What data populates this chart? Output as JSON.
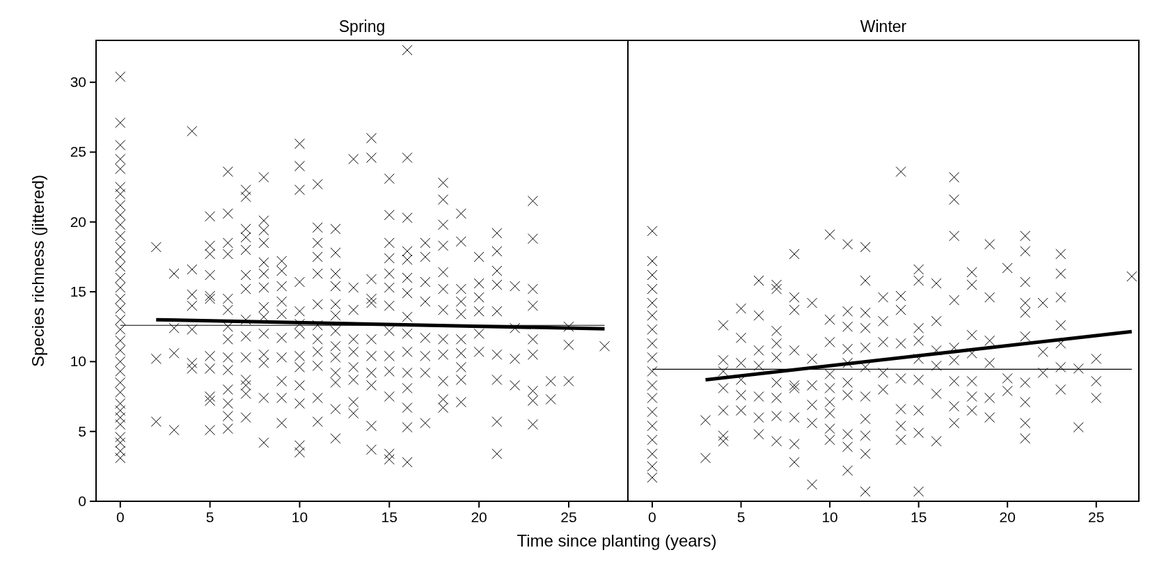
{
  "chart_data": [
    {
      "type": "scatter",
      "title": "Spring",
      "xlabel": "Time since planting (years)",
      "ylabel": "Species richness (jittered)",
      "xlim": [
        -1.35,
        28.3
      ],
      "ylim": [
        0,
        33
      ],
      "xticks": [
        0,
        5,
        10,
        15,
        20,
        25
      ],
      "yticks": [
        0,
        5,
        10,
        15,
        20,
        25,
        30
      ],
      "series": [
        {
          "type": "scatter",
          "marker": "cross",
          "color": "#000000",
          "x": [
            0,
            0,
            0,
            0,
            0,
            0,
            0,
            0,
            0,
            0,
            0,
            0,
            0,
            0,
            0,
            0,
            0,
            0,
            0,
            0,
            0,
            0,
            0,
            0,
            0,
            0,
            0,
            0,
            0,
            0,
            0,
            0,
            0,
            0,
            2,
            2,
            2,
            3,
            3,
            3,
            3,
            4,
            4,
            4,
            4,
            4,
            4,
            4,
            5,
            5,
            5,
            5,
            5,
            5,
            5,
            5,
            5,
            5,
            5,
            6,
            6,
            6,
            6,
            6,
            6,
            6,
            6,
            6,
            6,
            6,
            6,
            6,
            6,
            7,
            7,
            7,
            7,
            7,
            7,
            7,
            7,
            7,
            7,
            7,
            7,
            7,
            7,
            8,
            8,
            8,
            8,
            8,
            8,
            8,
            8,
            8,
            8,
            8,
            8,
            8,
            8,
            9,
            9,
            9,
            9,
            9,
            9,
            9,
            9,
            9,
            9,
            10,
            10,
            10,
            10,
            10,
            10,
            10,
            10,
            10,
            10,
            10,
            10,
            10,
            11,
            11,
            11,
            11,
            11,
            11,
            11,
            11,
            11,
            11,
            11,
            11,
            12,
            12,
            12,
            12,
            12,
            12,
            12,
            12,
            12,
            12,
            12,
            12,
            12,
            13,
            13,
            13,
            13,
            13,
            13,
            13,
            13,
            13,
            14,
            14,
            14,
            14,
            14,
            14,
            14,
            14,
            14,
            14,
            14,
            15,
            15,
            15,
            15,
            15,
            15,
            15,
            15,
            15,
            15,
            15,
            15,
            15,
            16,
            16,
            16,
            16,
            16,
            16,
            16,
            16,
            16,
            16,
            16,
            16,
            16,
            16,
            16,
            17,
            17,
            17,
            17,
            17,
            17,
            17,
            17,
            18,
            18,
            18,
            18,
            18,
            18,
            18,
            18,
            18,
            18,
            18,
            18,
            19,
            19,
            19,
            19,
            19,
            19,
            19,
            19,
            19,
            19,
            20,
            20,
            20,
            20,
            20,
            20,
            21,
            21,
            21,
            21,
            21,
            21,
            21,
            21,
            21,
            22,
            22,
            22,
            22,
            23,
            23,
            23,
            23,
            23,
            23,
            23,
            23,
            23,
            24,
            24,
            25,
            25,
            25,
            27
          ],
          "values": [
            30.4,
            27.1,
            25.5,
            24.5,
            23.8,
            22.5,
            22.0,
            21.2,
            20.5,
            19.8,
            19.0,
            18.2,
            17.5,
            16.8,
            16.0,
            15.3,
            14.5,
            13.8,
            13.0,
            12.3,
            11.5,
            10.8,
            10.0,
            9.3,
            8.5,
            7.8,
            7.0,
            6.5,
            6.0,
            5.5,
            4.6,
            4.2,
            3.6,
            3.1,
            18.2,
            10.2,
            5.7,
            16.3,
            12.4,
            10.6,
            5.1,
            26.5,
            16.6,
            14.8,
            14.0,
            12.3,
            9.9,
            9.5,
            20.4,
            18.3,
            17.7,
            16.2,
            14.7,
            14.5,
            10.4,
            9.5,
            7.5,
            7.2,
            5.1,
            23.6,
            20.6,
            18.5,
            17.7,
            14.5,
            13.7,
            12.5,
            11.6,
            10.3,
            9.4,
            8.0,
            7.0,
            6.1,
            5.2,
            22.3,
            21.8,
            19.5,
            18.9,
            18.0,
            16.2,
            15.2,
            13.0,
            11.8,
            10.3,
            8.7,
            8.3,
            7.7,
            6.0,
            23.2,
            20.1,
            19.4,
            18.5,
            17.1,
            16.3,
            15.3,
            13.9,
            13.2,
            12.0,
            10.5,
            9.9,
            7.4,
            4.2,
            17.2,
            16.5,
            15.4,
            14.3,
            13.4,
            11.7,
            10.3,
            8.6,
            7.4,
            5.6,
            25.6,
            24.0,
            22.3,
            15.7,
            13.6,
            12.7,
            12.0,
            10.4,
            9.6,
            8.3,
            7.0,
            4.0,
            3.5,
            22.7,
            19.6,
            18.5,
            17.5,
            16.3,
            14.1,
            12.6,
            11.6,
            10.7,
            9.7,
            7.4,
            5.7,
            19.5,
            17.8,
            16.3,
            15.4,
            14.1,
            13.3,
            12.2,
            11.1,
            10.3,
            9.2,
            8.5,
            6.6,
            4.5,
            24.5,
            15.3,
            13.7,
            11.6,
            10.7,
            9.6,
            8.7,
            7.1,
            6.3,
            26.0,
            24.6,
            15.9,
            14.5,
            14.2,
            11.6,
            10.4,
            9.2,
            8.3,
            5.4,
            3.7,
            23.1,
            20.5,
            18.5,
            17.4,
            16.3,
            15.3,
            14.0,
            12.2,
            10.4,
            9.3,
            7.5,
            3.4,
            3.0,
            32.3,
            24.6,
            20.3,
            17.9,
            17.3,
            16.0,
            14.9,
            13.2,
            12.0,
            10.7,
            9.2,
            8.1,
            6.7,
            5.3,
            2.8,
            18.5,
            17.5,
            15.7,
            14.3,
            11.7,
            10.4,
            9.2,
            5.6,
            22.8,
            21.6,
            19.8,
            18.3,
            16.4,
            15.2,
            13.7,
            11.6,
            10.5,
            8.6,
            7.3,
            6.7,
            20.6,
            18.6,
            15.2,
            14.3,
            13.4,
            11.6,
            10.6,
            9.6,
            8.7,
            7.1,
            17.5,
            15.6,
            14.6,
            13.6,
            12.0,
            10.7,
            19.2,
            17.9,
            16.5,
            15.5,
            13.6,
            10.5,
            8.7,
            5.7,
            3.4,
            15.4,
            12.4,
            10.2,
            8.3,
            21.5,
            18.8,
            15.2,
            14.0,
            11.6,
            10.5,
            7.9,
            7.2,
            5.5,
            8.6,
            7.3,
            12.5,
            11.2,
            8.6,
            11.1
          ]
        },
        {
          "type": "line",
          "color": "#000000",
          "x": [
            0,
            27
          ],
          "values": [
            12.6,
            12.6
          ]
        },
        {
          "type": "line",
          "color": "#000000",
          "x": [
            2,
            27
          ],
          "values": [
            13.0,
            12.35
          ]
        }
      ]
    },
    {
      "type": "scatter",
      "title": "Winter",
      "xlim": [
        -1.37,
        27.4
      ],
      "ylim": [
        0,
        33
      ],
      "xticks": [
        0,
        5,
        10,
        15,
        20,
        25
      ],
      "tick_labels": "x",
      "series": [
        {
          "type": "scatter",
          "marker": "cross",
          "color": "#000000",
          "x": [
            0,
            0,
            0,
            0,
            0,
            0,
            0,
            0,
            0,
            0,
            0,
            0,
            0,
            0,
            0,
            0,
            0,
            0,
            3,
            3,
            4,
            4,
            4,
            4,
            4,
            4,
            4,
            5,
            5,
            5,
            5,
            5,
            5,
            6,
            6,
            6,
            6,
            6,
            6,
            6,
            7,
            7,
            7,
            7,
            7,
            7,
            7,
            7,
            7,
            8,
            8,
            8,
            8,
            8,
            8,
            8,
            8,
            8,
            9,
            9,
            9,
            9,
            9,
            9,
            10,
            10,
            10,
            10,
            10,
            10,
            10,
            10,
            10,
            11,
            11,
            11,
            11,
            11,
            11,
            11,
            11,
            11,
            11,
            12,
            12,
            12,
            12,
            12,
            12,
            12,
            12,
            12,
            12,
            12,
            13,
            13,
            13,
            13,
            13,
            14,
            14,
            14,
            14,
            14,
            14,
            14,
            14,
            15,
            15,
            15,
            15,
            15,
            15,
            15,
            15,
            15,
            16,
            16,
            16,
            16,
            16,
            16,
            17,
            17,
            17,
            17,
            17,
            17,
            17,
            17,
            17,
            18,
            18,
            18,
            18,
            18,
            18,
            18,
            19,
            19,
            19,
            19,
            19,
            19,
            20,
            20,
            20,
            21,
            21,
            21,
            21,
            21,
            21,
            21,
            21,
            21,
            21,
            22,
            22,
            22,
            23,
            23,
            23,
            23,
            23,
            23,
            23,
            24,
            24,
            25,
            25,
            25,
            27
          ],
          "values": [
            19.35,
            17.2,
            16.2,
            15.2,
            14.2,
            13.3,
            12.3,
            11.3,
            10.3,
            9.3,
            8.3,
            7.4,
            6.4,
            5.4,
            4.4,
            3.4,
            2.5,
            1.7,
            5.8,
            3.1,
            12.6,
            10.1,
            9.3,
            8.1,
            6.5,
            4.7,
            4.3,
            13.8,
            11.7,
            9.9,
            8.7,
            7.6,
            6.5,
            15.8,
            13.3,
            10.8,
            9.7,
            7.5,
            6.0,
            4.8,
            15.5,
            15.2,
            12.2,
            11.3,
            10.3,
            8.5,
            7.4,
            6.1,
            4.3,
            17.7,
            14.6,
            13.7,
            10.8,
            8.3,
            8.1,
            6.0,
            4.1,
            2.8,
            14.2,
            10.2,
            8.3,
            6.9,
            5.6,
            1.2,
            19.1,
            13.0,
            11.4,
            9.1,
            8.1,
            7.1,
            6.3,
            5.2,
            4.4,
            18.4,
            13.6,
            12.5,
            10.9,
            9.9,
            8.5,
            7.6,
            4.8,
            3.9,
            2.2,
            18.2,
            15.8,
            13.5,
            12.4,
            11.0,
            9.6,
            7.5,
            5.9,
            4.7,
            3.4,
            0.7,
            14.6,
            12.9,
            11.4,
            9.2,
            8.0,
            23.6,
            14.7,
            13.7,
            11.3,
            8.8,
            6.6,
            5.4,
            4.4,
            16.6,
            15.8,
            12.4,
            11.5,
            10.2,
            8.7,
            6.5,
            4.9,
            0.7,
            15.6,
            12.9,
            10.8,
            9.7,
            7.7,
            4.3,
            23.2,
            21.6,
            19.0,
            14.4,
            11.0,
            10.1,
            8.6,
            6.8,
            5.6,
            16.4,
            15.5,
            11.9,
            10.6,
            8.6,
            7.5,
            6.5,
            18.4,
            14.6,
            11.5,
            9.9,
            7.4,
            6.0,
            16.7,
            8.8,
            7.9,
            19.0,
            17.9,
            15.7,
            14.2,
            13.5,
            11.8,
            8.5,
            7.1,
            5.6,
            4.5,
            14.2,
            10.7,
            9.2,
            17.7,
            16.3,
            14.6,
            12.6,
            11.3,
            9.6,
            8.0,
            9.5,
            5.3,
            10.2,
            8.6,
            7.4,
            16.1
          ]
        },
        {
          "type": "line",
          "color": "#000000",
          "x": [
            0,
            27
          ],
          "values": [
            9.45,
            9.45
          ]
        },
        {
          "type": "line",
          "color": "#000000",
          "x": [
            3,
            27
          ],
          "values": [
            8.7,
            12.15
          ]
        }
      ]
    }
  ]
}
